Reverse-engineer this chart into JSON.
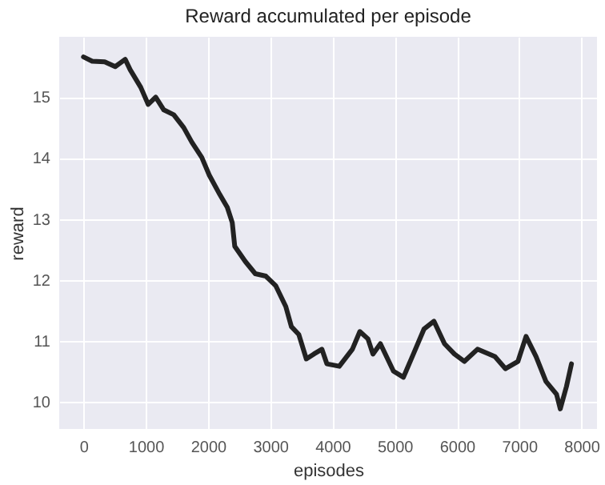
{
  "chart_data": {
    "type": "line",
    "title": "Reward accumulated per episode",
    "xlabel": "episodes",
    "ylabel": "reward",
    "x": [
      0,
      140,
      340,
      510,
      670,
      750,
      920,
      1040,
      1160,
      1290,
      1450,
      1610,
      1740,
      1900,
      2020,
      2190,
      2310,
      2390,
      2430,
      2600,
      2760,
      2930,
      3090,
      3250,
      3340,
      3460,
      3580,
      3700,
      3830,
      3910,
      4110,
      4320,
      4440,
      4570,
      4650,
      4770,
      4980,
      5140,
      5300,
      5470,
      5630,
      5800,
      5960,
      6120,
      6330,
      6610,
      6780,
      6980,
      7110,
      7270,
      7430,
      7600,
      7660,
      7760,
      7840
    ],
    "series": [
      {
        "color": "#222222",
        "values": [
          15.66,
          15.59,
          15.58,
          15.5,
          15.62,
          15.45,
          15.16,
          14.88,
          15.0,
          14.79,
          14.71,
          14.5,
          14.26,
          14.01,
          13.72,
          13.4,
          13.19,
          12.94,
          12.55,
          12.3,
          12.1,
          12.06,
          11.9,
          11.56,
          11.23,
          11.1,
          10.7,
          10.78,
          10.86,
          10.62,
          10.58,
          10.86,
          11.15,
          11.03,
          10.78,
          10.95,
          10.5,
          10.4,
          10.78,
          11.19,
          11.32,
          10.95,
          10.78,
          10.66,
          10.86,
          10.74,
          10.54,
          10.66,
          11.07,
          10.74,
          10.33,
          10.12,
          9.88,
          10.25,
          10.62
        ]
      }
    ],
    "xlim": [
      -390,
      8250
    ],
    "ylim": [
      9.55,
      15.99
    ],
    "xticks": [
      0,
      1000,
      2000,
      3000,
      4000,
      5000,
      6000,
      7000,
      8000
    ],
    "yticks": [
      10,
      11,
      12,
      13,
      14,
      15
    ],
    "grid": true,
    "line_style": "solid",
    "marker": "none"
  }
}
